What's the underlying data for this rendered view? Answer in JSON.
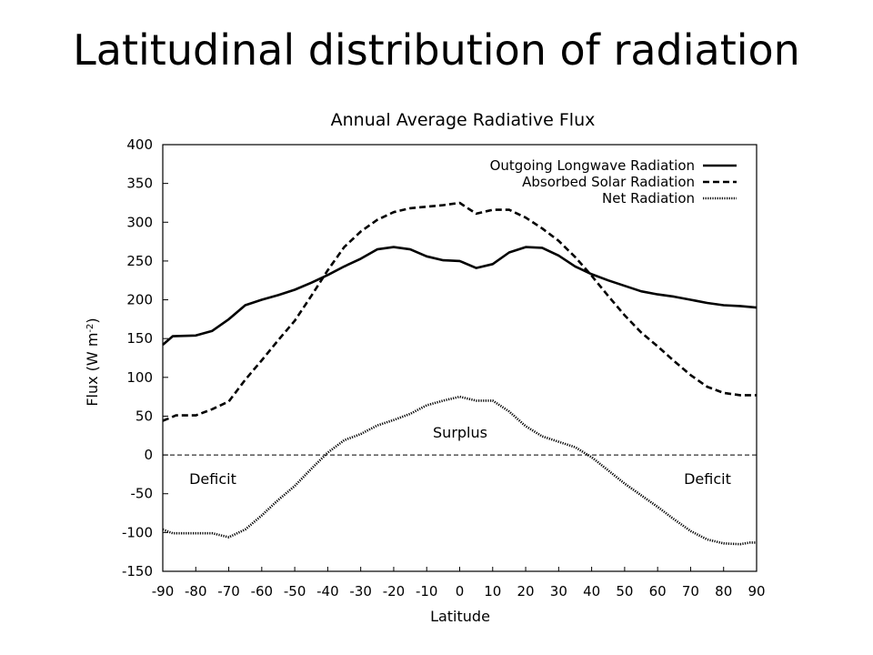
{
  "slide": {
    "title": "Latitudinal distribution of radiation"
  },
  "chart_data": {
    "type": "line",
    "title": "Annual Average Radiative Flux",
    "xlabel": "Latitude",
    "ylabel": "Flux (W m-2)",
    "ylabel_parts": {
      "base": "Flux (W m",
      "sup": "-2",
      "close": ")"
    },
    "xlim": [
      -90,
      90
    ],
    "ylim": [
      -150,
      400
    ],
    "xticks": [
      "-90",
      "-80",
      "-70",
      "-60",
      "-50",
      "-40",
      "-30",
      "-20",
      "-10",
      "0",
      "10",
      "20",
      "30",
      "40",
      "50",
      "60",
      "70",
      "80",
      "90"
    ],
    "yticks": [
      "400",
      "350",
      "300",
      "250",
      "200",
      "150",
      "100",
      "50",
      "0",
      "-50",
      "-100",
      "-150"
    ],
    "legend_position": "top-right",
    "annotations": {
      "surplus": "Surplus",
      "deficit_left": "Deficit",
      "deficit_right": "Deficit"
    },
    "zero_line": "dashed",
    "series": [
      {
        "name": "Outgoing Longwave Radiation",
        "style": "solid",
        "x": [
          -90,
          -87,
          -80,
          -75,
          -70,
          -65,
          -60,
          -55,
          -50,
          -45,
          -40,
          -35,
          -30,
          -25,
          -20,
          -15,
          -10,
          -5,
          0,
          5,
          10,
          15,
          20,
          25,
          30,
          35,
          40,
          45,
          50,
          55,
          60,
          65,
          70,
          75,
          80,
          85,
          90
        ],
        "y": [
          142,
          153,
          154,
          160,
          175,
          193,
          200,
          206,
          213,
          222,
          232,
          243,
          253,
          265,
          268,
          265,
          256,
          251,
          250,
          241,
          246,
          261,
          268,
          267,
          257,
          243,
          233,
          225,
          218,
          211,
          207,
          204,
          200,
          196,
          193,
          192,
          190
        ]
      },
      {
        "name": "Absorbed Solar Radiation",
        "style": "dashed",
        "x": [
          -90,
          -86,
          -80,
          -75,
          -70,
          -65,
          -60,
          -55,
          -50,
          -45,
          -40,
          -35,
          -30,
          -25,
          -20,
          -15,
          -10,
          -5,
          0,
          5,
          10,
          15,
          20,
          25,
          30,
          35,
          40,
          45,
          50,
          55,
          60,
          65,
          70,
          75,
          80,
          85,
          90
        ],
        "y": [
          44,
          51,
          51,
          59,
          69,
          97,
          122,
          148,
          173,
          205,
          238,
          268,
          288,
          303,
          313,
          318,
          320,
          322,
          325,
          311,
          316,
          316,
          306,
          292,
          276,
          255,
          231,
          205,
          180,
          158,
          140,
          121,
          103,
          88,
          80,
          77,
          77
        ]
      },
      {
        "name": "Net Radiation",
        "style": "dotted",
        "x": [
          -90,
          -87,
          -80,
          -75,
          -70,
          -65,
          -60,
          -55,
          -50,
          -45,
          -40,
          -35,
          -30,
          -25,
          -20,
          -15,
          -10,
          -5,
          0,
          5,
          10,
          15,
          20,
          25,
          30,
          35,
          40,
          45,
          50,
          55,
          60,
          65,
          70,
          75,
          80,
          85,
          88,
          90
        ],
        "y": [
          -96,
          -101,
          -101,
          -101,
          -106,
          -96,
          -78,
          -58,
          -40,
          -18,
          3,
          19,
          27,
          38,
          45,
          53,
          64,
          70,
          75,
          70,
          70,
          56,
          37,
          24,
          17,
          10,
          -3,
          -20,
          -37,
          -52,
          -67,
          -83,
          -98,
          -109,
          -114,
          -115,
          -113,
          -113
        ]
      }
    ]
  }
}
